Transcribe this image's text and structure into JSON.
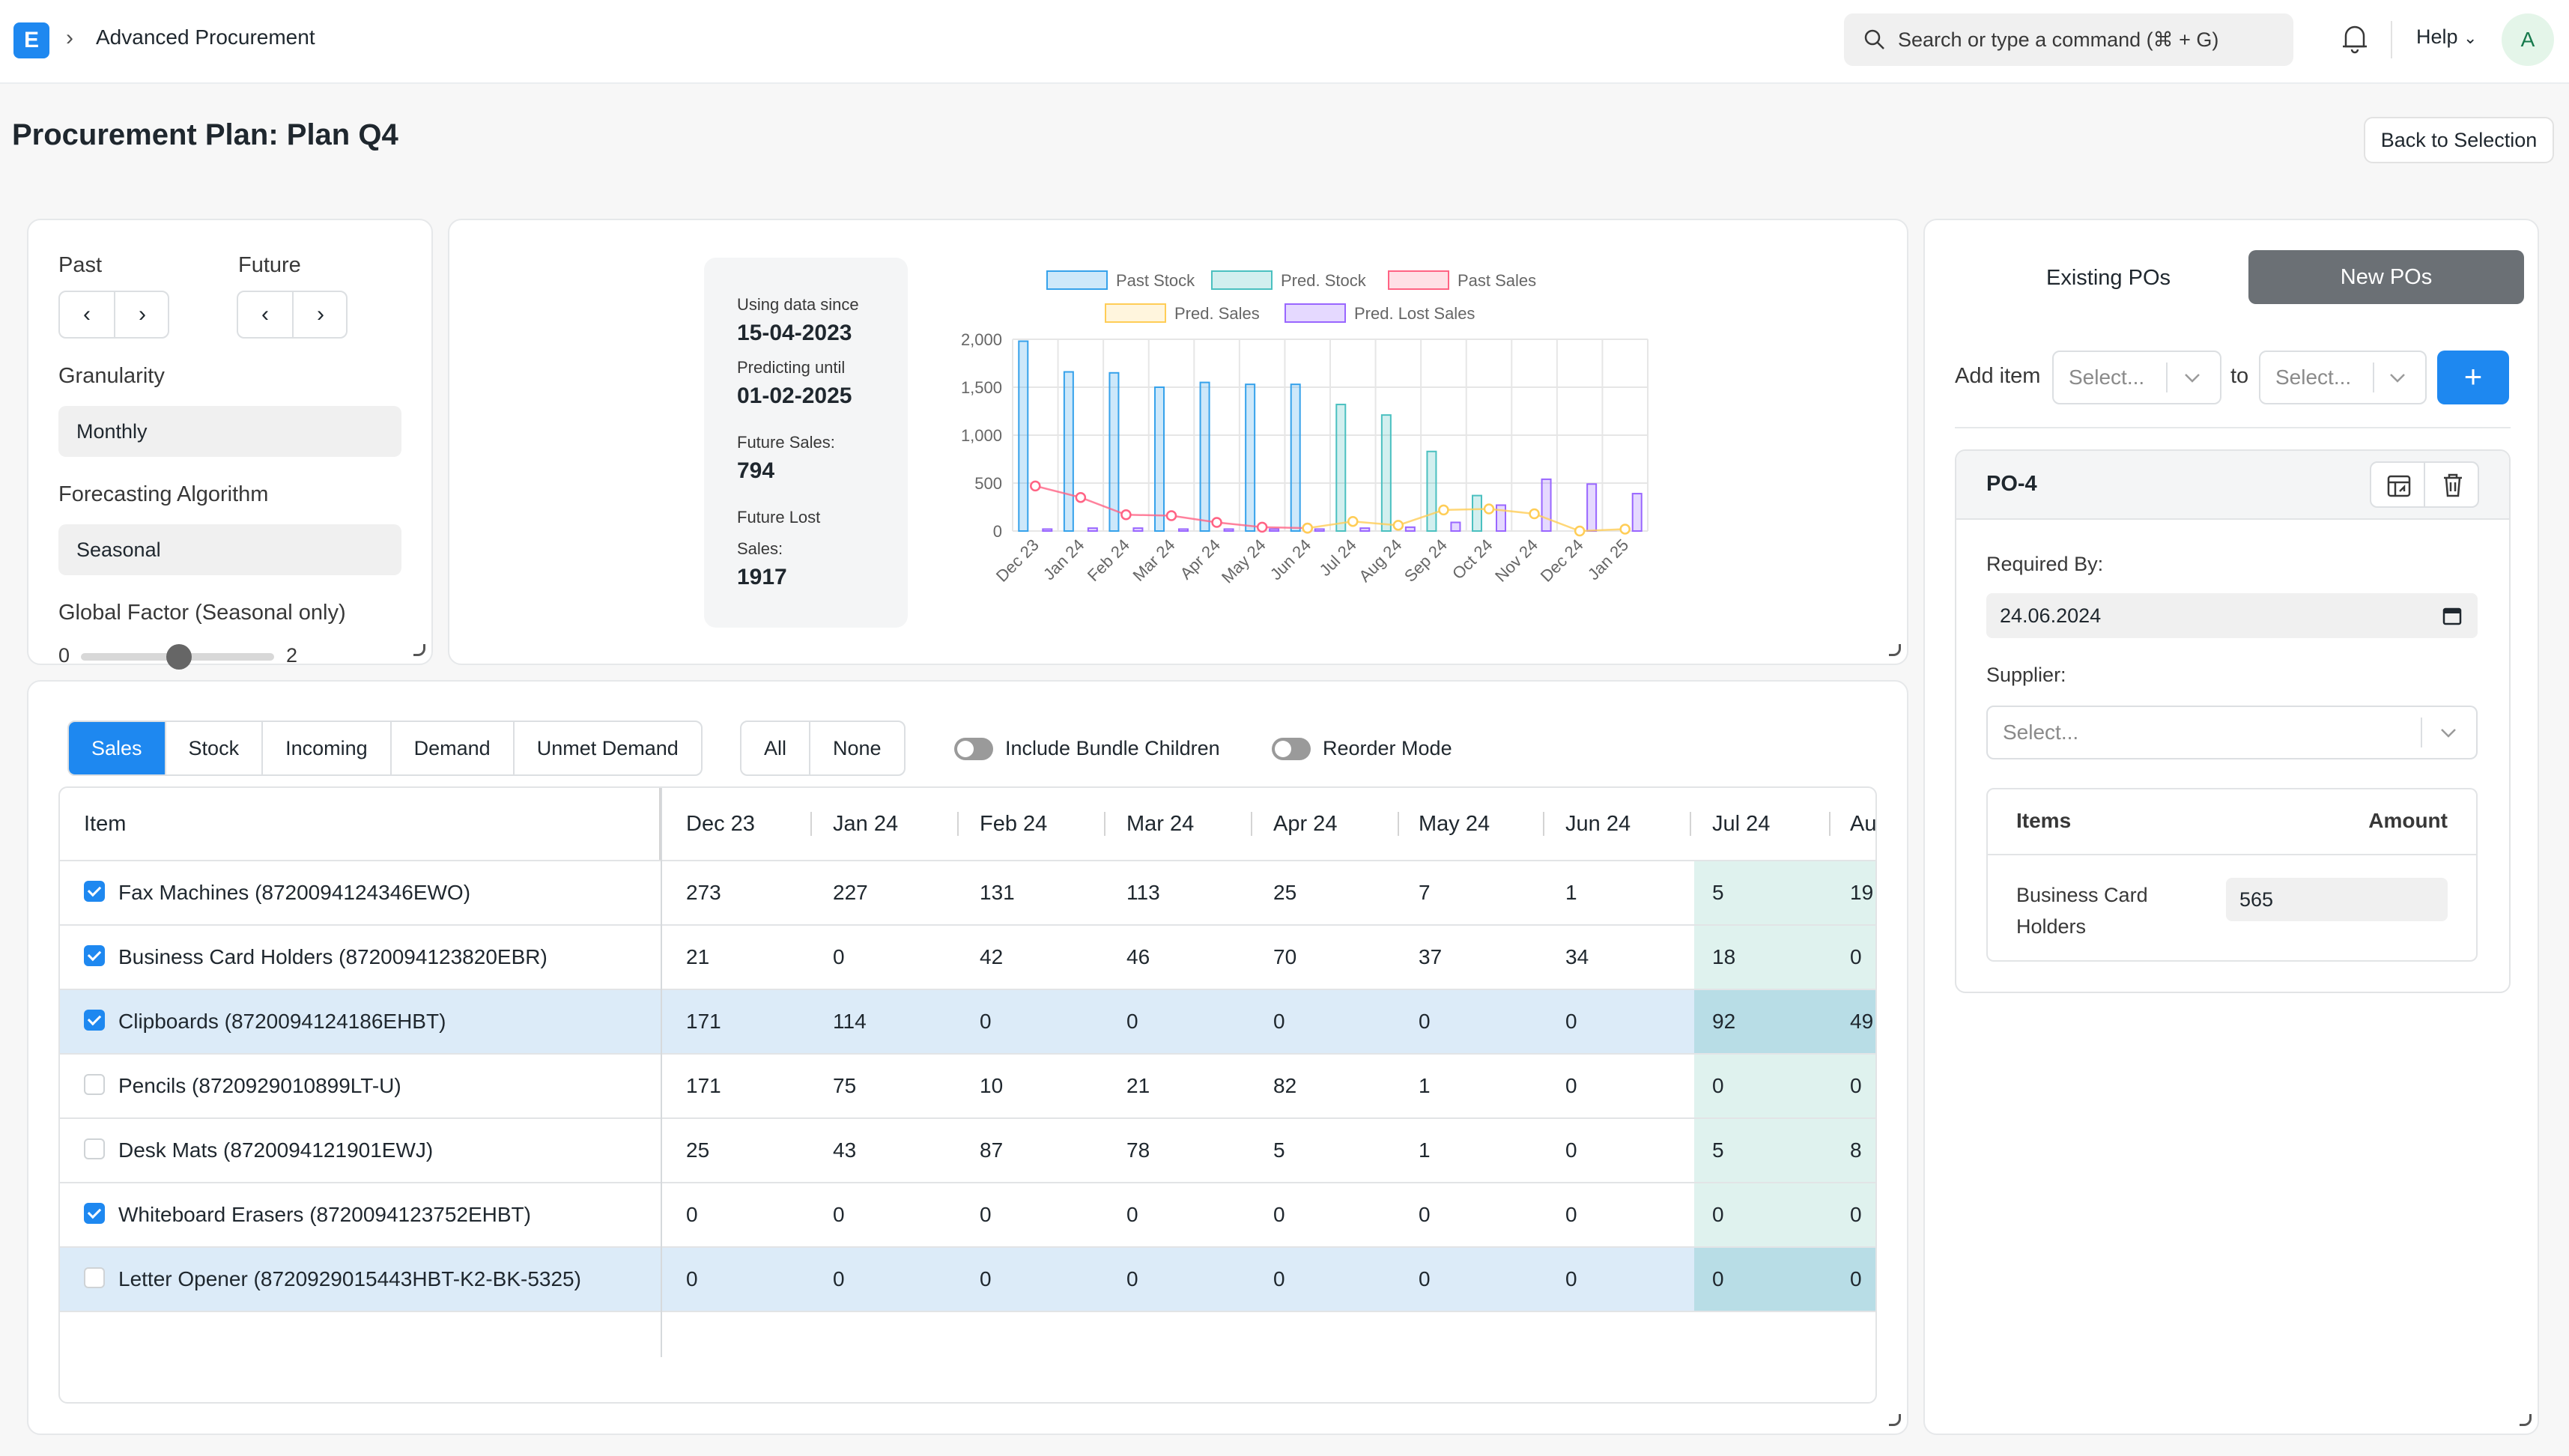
{
  "nav": {
    "logo": "E",
    "breadcrumb": "Advanced Procurement",
    "search_placeholder": "Search or type a command (⌘ + G)",
    "help": "Help",
    "avatar": "A"
  },
  "page": {
    "title": "Procurement Plan: Plan Q4",
    "back_button": "Back to Selection"
  },
  "config": {
    "past_label": "Past",
    "future_label": "Future",
    "granularity_label": "Granularity",
    "granularity_value": "Monthly",
    "algorithm_label": "Forecasting Algorithm",
    "algorithm_value": "Seasonal",
    "global_factor_label": "Global Factor (Seasonal only)",
    "slider_min": "0",
    "slider_max": "2",
    "slider_value_fraction": 0.42
  },
  "stats": {
    "using_since_label": "Using data since",
    "using_since_value": "15-04-2023",
    "predicting_until_label": "Predicting until",
    "predicting_until_value": "01-02-2025",
    "future_sales_label": "Future Sales:",
    "future_sales_value": "794",
    "future_lost_label_1": "Future Lost",
    "future_lost_label_2": "Sales:",
    "future_lost_value": "1917"
  },
  "chart_data": {
    "type": "bar",
    "categories": [
      "Dec 23",
      "Jan 24",
      "Feb 24",
      "Mar 24",
      "Apr 24",
      "May 24",
      "Jun 24",
      "Jul 24",
      "Aug 24",
      "Sep 24",
      "Oct 24",
      "Nov 24",
      "Dec 24",
      "Jan 25"
    ],
    "ylim": [
      0,
      2000
    ],
    "yticks": [
      "0",
      "500",
      "1,000",
      "1,500",
      "2,000"
    ],
    "grid": true,
    "legend": "top",
    "series": [
      {
        "name": "Past Stock",
        "kind": "bar",
        "color": "#36a2eb",
        "values": [
          1980,
          1660,
          1650,
          1500,
          1550,
          1530,
          1530,
          null,
          null,
          null,
          null,
          null,
          null,
          null
        ]
      },
      {
        "name": "Pred. Stock",
        "kind": "bar",
        "color": "#4bc0c0",
        "values": [
          null,
          null,
          null,
          null,
          null,
          null,
          null,
          1320,
          1210,
          830,
          370,
          null,
          null,
          null
        ]
      },
      {
        "name": "Past Sales",
        "kind": "line",
        "color": "#ff6384",
        "values": [
          470,
          350,
          170,
          160,
          90,
          40,
          30,
          null,
          null,
          null,
          null,
          null,
          null,
          null
        ]
      },
      {
        "name": "Pred. Sales",
        "kind": "line",
        "color": "#ffcd56",
        "values": [
          null,
          null,
          null,
          null,
          null,
          null,
          30,
          100,
          60,
          220,
          230,
          180,
          0,
          20
        ]
      },
      {
        "name": "Pred. Lost Sales",
        "kind": "bar",
        "color": "#9966ff",
        "values": [
          20,
          30,
          30,
          20,
          20,
          20,
          20,
          30,
          40,
          90,
          270,
          540,
          490,
          390
        ]
      }
    ]
  },
  "table": {
    "tabs": [
      "Sales",
      "Stock",
      "Incoming",
      "Demand",
      "Unmet Demand"
    ],
    "active_tab": "Sales",
    "filter_buttons": [
      "All",
      "None"
    ],
    "toggle_bundle": "Include Bundle Children",
    "toggle_reorder": "Reorder Mode",
    "item_header": "Item",
    "columns": [
      "Dec 23",
      "Jan 24",
      "Feb 24",
      "Mar 24",
      "Apr 24",
      "May 24",
      "Jun 24",
      "Jul 24",
      "Au"
    ],
    "rows": [
      {
        "item": "Fax Machines (8720094124346EWO)",
        "checked": true,
        "highlight": false,
        "values": [
          "273",
          "227",
          "131",
          "113",
          "25",
          "7",
          "1",
          "5",
          "19"
        ]
      },
      {
        "item": "Business Card Holders (8720094123820EBR)",
        "checked": true,
        "highlight": false,
        "values": [
          "21",
          "0",
          "42",
          "46",
          "70",
          "37",
          "34",
          "18",
          "0"
        ]
      },
      {
        "item": "Clipboards (8720094124186EHBT)",
        "checked": true,
        "highlight": true,
        "values": [
          "171",
          "114",
          "0",
          "0",
          "0",
          "0",
          "0",
          "92",
          "49"
        ]
      },
      {
        "item": "Pencils (8720929010899LT-U)",
        "checked": false,
        "highlight": false,
        "values": [
          "171",
          "75",
          "10",
          "21",
          "82",
          "1",
          "0",
          "0",
          "0"
        ]
      },
      {
        "item": "Desk Mats (8720094121901EWJ)",
        "checked": false,
        "highlight": false,
        "values": [
          "25",
          "43",
          "87",
          "78",
          "5",
          "1",
          "0",
          "5",
          "8"
        ]
      },
      {
        "item": "Whiteboard Erasers (8720094123752EHBT)",
        "checked": true,
        "highlight": false,
        "values": [
          "0",
          "0",
          "0",
          "0",
          "0",
          "0",
          "0",
          "0",
          "0"
        ]
      },
      {
        "item": "Letter Opener (8720929015443HBT-K2-BK-5325)",
        "checked": false,
        "highlight": true,
        "values": [
          "0",
          "0",
          "0",
          "0",
          "0",
          "0",
          "0",
          "0",
          "0"
        ]
      }
    ]
  },
  "po": {
    "tab_existing": "Existing POs",
    "tab_new": "New POs",
    "add_item_label": "Add item",
    "select_placeholder": "Select...",
    "to_label": "to",
    "plus": "+",
    "po_name": "PO-4",
    "required_by_label": "Required By:",
    "required_by_value": "24.06.2024",
    "supplier_label": "Supplier:",
    "supplier_placeholder": "Select...",
    "items_header": "Items",
    "amount_header": "Amount",
    "line_item_1": "Business Card",
    "line_item_2": "Holders",
    "line_amount": "565"
  }
}
